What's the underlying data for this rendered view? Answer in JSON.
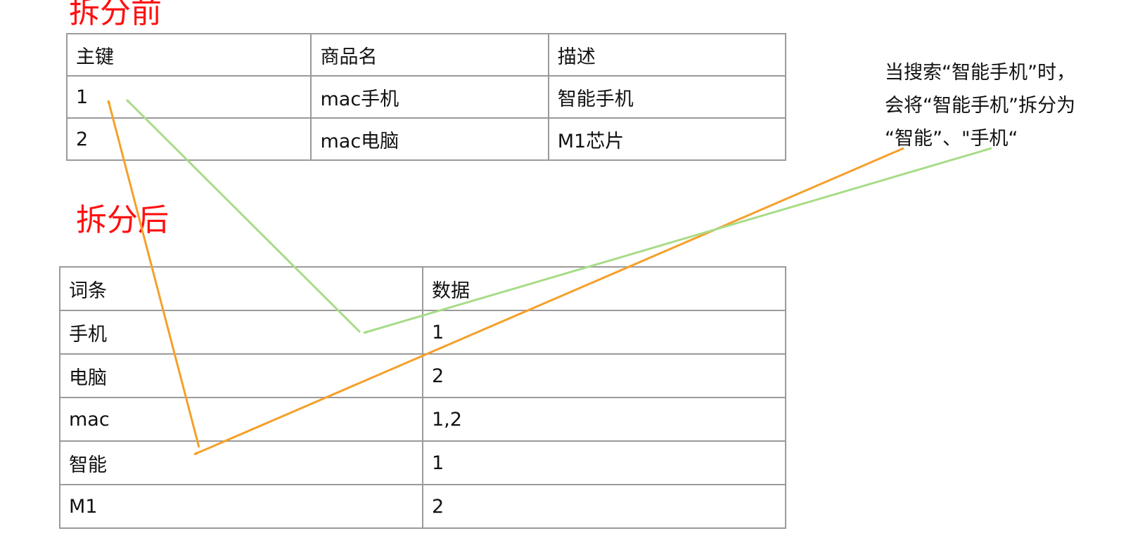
{
  "before": {
    "title": "拆分前",
    "title_color": "#ff1010",
    "columns": [
      "主键",
      "商品名",
      "描述"
    ],
    "rows": [
      [
        "1",
        "mac手机",
        "智能手机"
      ],
      [
        "2",
        "mac电脑",
        "M1芯片"
      ]
    ]
  },
  "after": {
    "title": "拆分后",
    "title_color": "#ff1010",
    "columns": [
      "词条",
      "数据"
    ],
    "rows": [
      [
        "手机",
        "1"
      ],
      [
        "电脑",
        "2"
      ],
      [
        "mac",
        "1,2"
      ],
      [
        "智能",
        "1"
      ],
      [
        "M1",
        "2"
      ]
    ]
  },
  "note": {
    "lines": [
      "当搜索“智能手机”时，",
      "会将“智能手机”拆分为",
      "“智能”、\"手机“"
    ]
  },
  "arrows": {
    "orange_color": "#f5a02a",
    "green_color": "#a8dc88"
  }
}
